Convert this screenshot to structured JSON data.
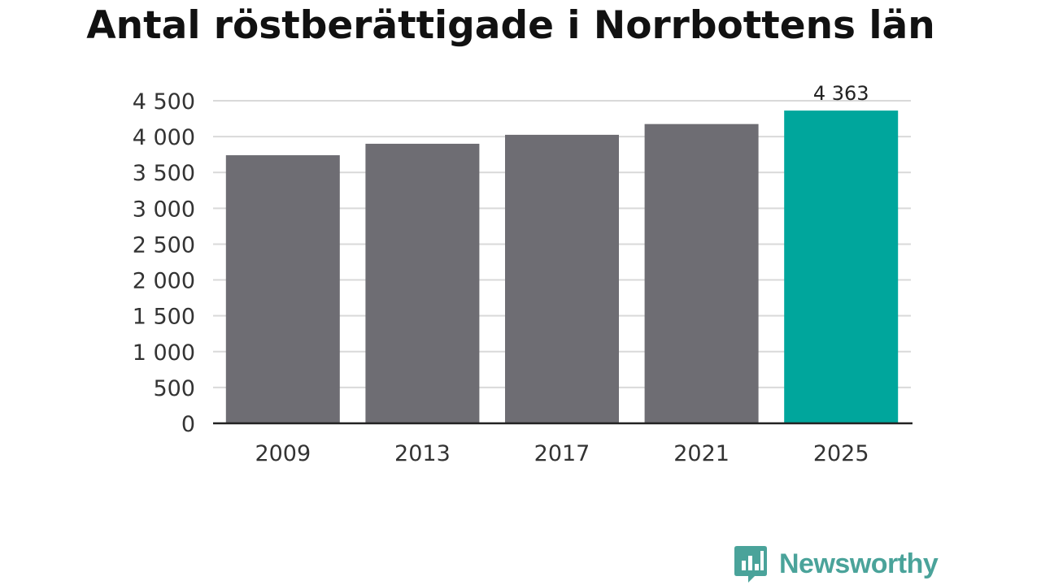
{
  "chart_data": {
    "type": "bar",
    "title": "Antal röstberättigade i Norrbottens län",
    "categories": [
      "2009",
      "2013",
      "2017",
      "2021",
      "2025"
    ],
    "values": [
      3740,
      3900,
      4025,
      4175,
      4363
    ],
    "data_labels": [
      "",
      "",
      "",
      "",
      "4 363"
    ],
    "yticks": [
      0,
      500,
      1000,
      1500,
      2000,
      2500,
      3000,
      3500,
      4000,
      4500
    ],
    "ytick_labels": [
      "0",
      "500",
      "1 000",
      "1 500",
      "2 000",
      "2 500",
      "3 000",
      "3 500",
      "4 000",
      "4 500"
    ],
    "ylim": [
      0,
      4500
    ],
    "xlabel": "",
    "ylabel": "",
    "grid": true,
    "colors": {
      "default_bar": "#6e6d73",
      "highlight_bar": "#00a69c",
      "grid": "#d9d9d9",
      "axis": "#222222"
    }
  },
  "branding": {
    "name": "Newsworthy",
    "color": "#4aa39a",
    "icon": "newsworthy-chat-chart-icon"
  }
}
